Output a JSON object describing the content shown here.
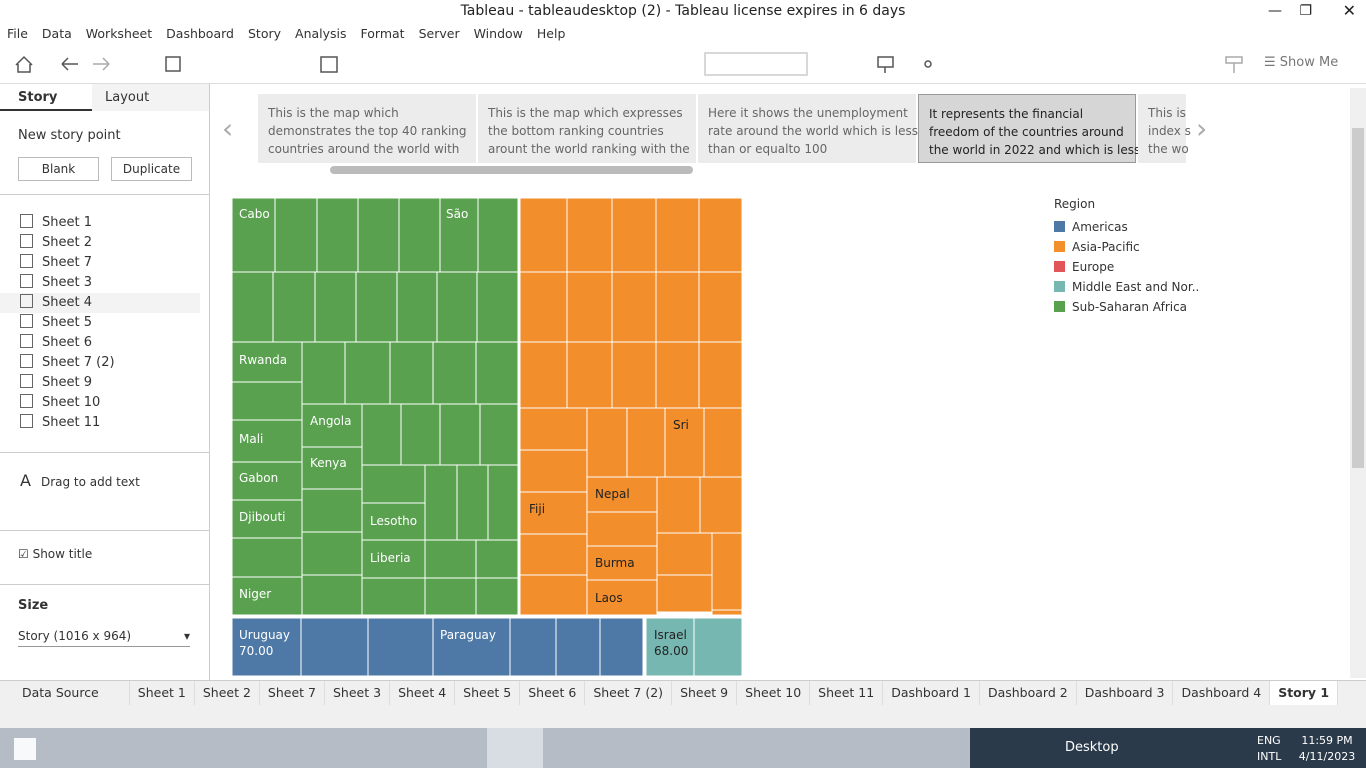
{
  "window": {
    "title": "Tableau - tableaudesktop (2) - Tableau license expires in 6 days"
  },
  "menu": [
    "File",
    "Data",
    "Worksheet",
    "Dashboard",
    "Story",
    "Analysis",
    "Format",
    "Server",
    "Window",
    "Help"
  ],
  "toolbar": {
    "show_me": "Show Me"
  },
  "side_panel": {
    "tabs": [
      "Story",
      "Layout"
    ],
    "new_story_point": "New story point",
    "buttons": [
      "Blank",
      "Duplicate"
    ],
    "sheets": [
      "Sheet 1",
      "Sheet 2",
      "Sheet 7",
      "Sheet 3",
      "Sheet 4",
      "Sheet 5",
      "Sheet 6",
      "Sheet 7 (2)",
      "Sheet 9",
      "Sheet 10",
      "Sheet 11"
    ],
    "drag_text": "Drag to add text",
    "show_title": "Show title",
    "size_label": "Size",
    "size_value": "Story (1016 x 964)"
  },
  "story_points": [
    [
      "This is the map which",
      "demonstrates the top 40 ranking",
      "countries around the world with"
    ],
    [
      "This is the map which expresses",
      "the bottom ranking countries",
      "arount the world ranking with the"
    ],
    [
      "Here it shows the unemployment",
      "rate around the world which is less",
      "than or equalto 100"
    ],
    [
      "It represents the financial",
      "freedom of the countries around",
      "the world in 2022 and which is less"
    ],
    [
      "This is",
      "index s",
      "the wo"
    ]
  ],
  "treemap": {
    "labels": [
      "Cabo",
      "São",
      "Rwanda",
      "Angola",
      "Mali",
      "Kenya",
      "Gabon",
      "Djibouti",
      "Lesotho",
      "Liberia",
      "Niger",
      "Sri",
      "Nepal",
      "Fiji",
      "Burma",
      "Laos",
      "Uruguay",
      "Paraguay",
      "Israel"
    ],
    "values": {
      "Uruguay": "70.00",
      "Israel": "68.00"
    }
  },
  "legend": {
    "title": "Region",
    "items": [
      "Americas",
      "Asia-Pacific",
      "Europe",
      "Middle East and Nor..",
      "Sub-Saharan Africa"
    ]
  },
  "tabs": [
    "Data Source",
    "Sheet 1",
    "Sheet 2",
    "Sheet 7",
    "Sheet 3",
    "Sheet 4",
    "Sheet 5",
    "Sheet 6",
    "Sheet 7 (2)",
    "Sheet 9",
    "Sheet 10",
    "Sheet 11",
    "Dashboard 1",
    "Dashboard 2",
    "Dashboard 3",
    "Dashboard 4",
    "Story 1"
  ],
  "taskbar": {
    "desktop": "Desktop",
    "lang": [
      "ENG",
      "INTL"
    ],
    "time": "11:59 PM",
    "date": "4/11/2023"
  }
}
